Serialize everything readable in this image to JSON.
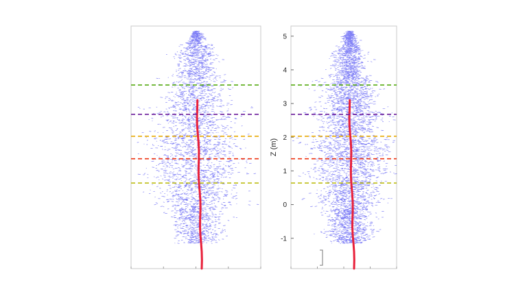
{
  "chart_data": [
    {
      "type": "scatter",
      "description": "point cloud",
      "xlabel": "",
      "ylabel": "",
      "ylim": [
        -1.9,
        5.3
      ],
      "show_y_ticks": false,
      "grid": false,
      "reference_lines": [
        {
          "z": 3.55,
          "color": "#55aa11"
        },
        {
          "z": 2.68,
          "color": "#6a1b9a"
        },
        {
          "z": 2.03,
          "color": "#e6a800"
        },
        {
          "z": 1.36,
          "color": "#ee3311"
        },
        {
          "z": 0.64,
          "color": "#b8b800"
        }
      ],
      "colors": {
        "foliage": "#1a1aee",
        "stem": "#e8203a"
      }
    },
    {
      "type": "scatter",
      "description": "point cloud",
      "xlabel": "",
      "ylabel": "Z (m)",
      "ylim": [
        -1.9,
        5.3
      ],
      "yticks": [
        "-1",
        "0",
        "1",
        "2",
        "3",
        "4",
        "5"
      ],
      "show_y_ticks": true,
      "grid": false,
      "reference_lines": [
        {
          "z": 3.55,
          "color": "#55aa11"
        },
        {
          "z": 2.68,
          "color": "#6a1b9a"
        },
        {
          "z": 2.03,
          "color": "#e6a800"
        },
        {
          "z": 1.36,
          "color": "#ee3311"
        },
        {
          "z": 0.64,
          "color": "#b8b800"
        }
      ],
      "colors": {
        "foliage": "#1a1aee",
        "stem": "#e8203a"
      }
    }
  ]
}
